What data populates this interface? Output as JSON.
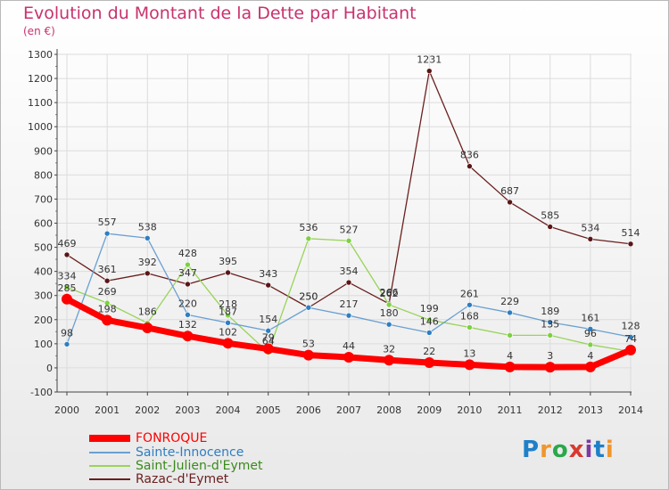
{
  "title": "Evolution du Montant de la Dette par Habitant",
  "subtitle": "(en €)",
  "logo": {
    "text": "Proxiti",
    "colors": [
      "#1f7fc8",
      "#f0962e",
      "#2aa84a",
      "#d83a2f",
      "#7c3aa0",
      "#1f7fc8",
      "#f0962e"
    ]
  },
  "chart_data": {
    "type": "line",
    "x": [
      "2000",
      "2001",
      "2002",
      "2003",
      "2004",
      "2005",
      "2006",
      "2007",
      "2008",
      "2009",
      "2010",
      "2011",
      "2012",
      "2013",
      "2014"
    ],
    "ylim": [
      -100,
      1300
    ],
    "yticks": [
      -100,
      0,
      100,
      200,
      300,
      400,
      500,
      600,
      700,
      800,
      900,
      1000,
      1100,
      1200,
      1300
    ],
    "grid": true,
    "series": [
      {
        "name": "Razac-d'Eymet",
        "color": "#6b1f1f",
        "marker": "#5a1616",
        "width": 1.3,
        "radius": 3,
        "values": [
          469,
          361,
          392,
          347,
          395,
          343,
          250,
          354,
          266,
          1231,
          836,
          687,
          585,
          534,
          514
        ],
        "labels": [
          "469",
          "361",
          "392",
          "347",
          "395",
          "343",
          "250",
          "354",
          "266",
          "1231",
          "836",
          "687",
          "585",
          "534",
          "514"
        ]
      },
      {
        "name": "Saint-Julien-d'Eymet",
        "color": "#99d35a",
        "marker": "#7dd141",
        "width": 1.3,
        "radius": 3,
        "values": [
          334,
          269,
          186,
          428,
          218,
          64,
          536,
          527,
          262,
          199,
          168,
          135,
          135,
          96,
          68
        ],
        "labels": [
          "334",
          "269",
          "186",
          "428",
          "218",
          "64",
          "536",
          "527",
          "262",
          "199",
          "168",
          "",
          "135",
          "96",
          ""
        ]
      },
      {
        "name": "Sainte-Innocence",
        "color": "#6aa0d2",
        "marker": "#2e7ec2",
        "width": 1.3,
        "radius": 3,
        "values": [
          98,
          557,
          538,
          220,
          187,
          154,
          250,
          217,
          180,
          146,
          261,
          229,
          189,
          161,
          128
        ],
        "labels": [
          "98",
          "557",
          "538",
          "220",
          "187",
          "154",
          "250",
          "217",
          "180",
          "146",
          "261",
          "229",
          "189",
          "161",
          "128"
        ]
      },
      {
        "name": "FONROQUE",
        "color": "#ff0000",
        "marker": "#ff0000",
        "width": 7,
        "radius": 6,
        "values": [
          285,
          198,
          166,
          132,
          102,
          79,
          53,
          44,
          32,
          22,
          13,
          4,
          3,
          4,
          74
        ],
        "labels": [
          "285",
          "198",
          "",
          "132",
          "102",
          "79",
          "53",
          "44",
          "32",
          "22",
          "13",
          "4",
          "3",
          "4",
          "74"
        ]
      }
    ]
  }
}
